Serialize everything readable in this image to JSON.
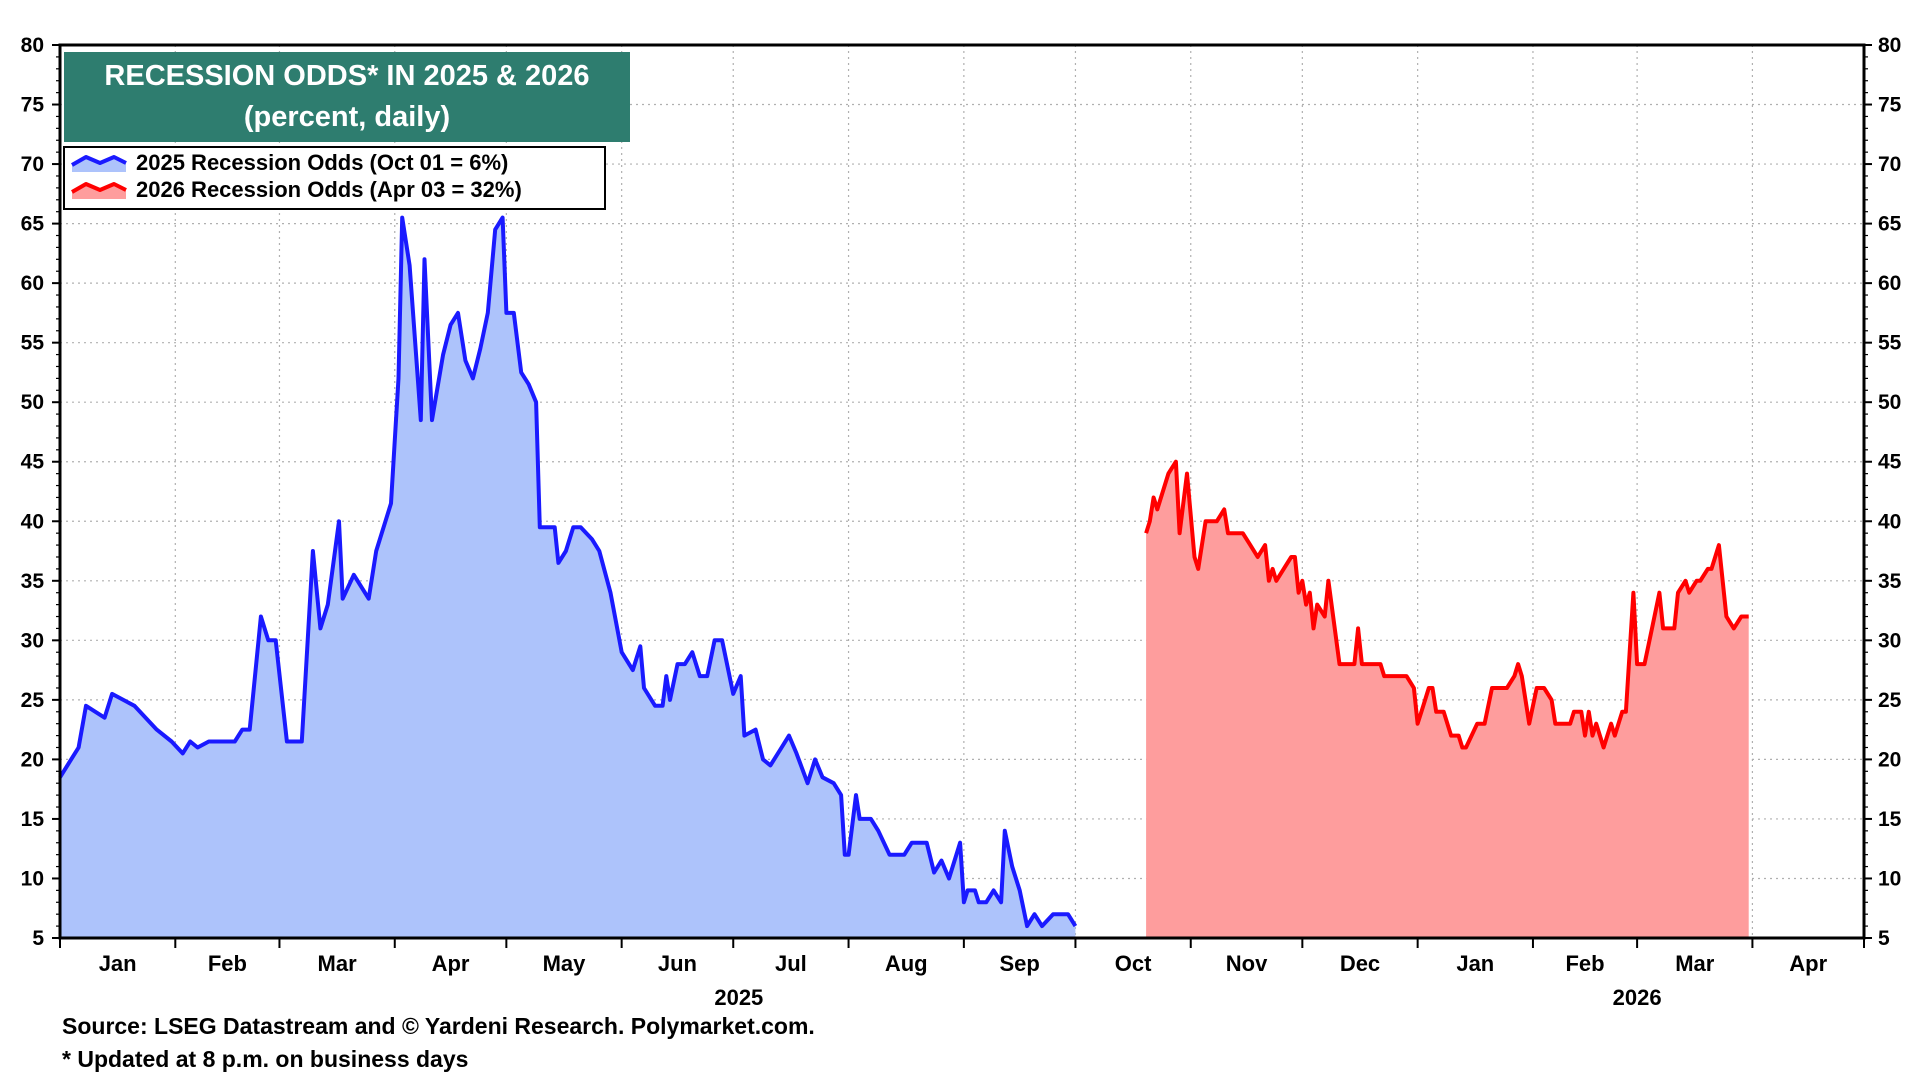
{
  "colors": {
    "series_2025_line": "#1a1aff",
    "series_2025_fill": "#adc3fb",
    "series_2026_line": "#ff0000",
    "series_2026_fill": "#fe9d9d",
    "title_box": "#2e7d6f",
    "grid": "#b0b0b0"
  },
  "footer": {
    "source": "Source: LSEG Datastream and © Yardeni Research. Polymarket.com.",
    "note": "* Updated at 8 p.m. on business days"
  },
  "chart_data": {
    "type": "area",
    "title": "RECESSION ODDS* IN 2025 & 2026",
    "subtitle": "(percent, daily)",
    "ylim": [
      5,
      80
    ],
    "y_ticks": [
      5,
      10,
      15,
      20,
      25,
      30,
      35,
      40,
      45,
      50,
      55,
      60,
      65,
      70,
      75,
      80
    ],
    "grid": true,
    "legend_position": "top-left",
    "x_range": [
      "2025-01-01",
      "2026-04-30"
    ],
    "x_month_labels": [
      "Jan",
      "Feb",
      "Mar",
      "Apr",
      "May",
      "Jun",
      "Jul",
      "Aug",
      "Sep",
      "Oct",
      "Nov",
      "Dec",
      "Jan",
      "Feb",
      "Mar",
      "Apr"
    ],
    "year_labels": [
      "2025",
      "2026"
    ],
    "series": [
      {
        "name": "2025 Recession Odds (Oct 01 = 6%)",
        "points": [
          [
            "2025-01-01",
            18.5
          ],
          [
            "2025-01-03",
            19.5
          ],
          [
            "2025-01-06",
            21
          ],
          [
            "2025-01-08",
            24.5
          ],
          [
            "2025-01-13",
            23.5
          ],
          [
            "2025-01-15",
            25.5
          ],
          [
            "2025-01-21",
            24.5
          ],
          [
            "2025-01-27",
            22.5
          ],
          [
            "2025-01-31",
            21.5
          ],
          [
            "2025-02-03",
            20.5
          ],
          [
            "2025-02-05",
            21.5
          ],
          [
            "2025-02-07",
            21
          ],
          [
            "2025-02-10",
            21.5
          ],
          [
            "2025-02-17",
            21.5
          ],
          [
            "2025-02-19",
            22.5
          ],
          [
            "2025-02-21",
            22.5
          ],
          [
            "2025-02-24",
            32
          ],
          [
            "2025-02-26",
            30
          ],
          [
            "2025-02-28",
            30
          ],
          [
            "2025-03-03",
            21.5
          ],
          [
            "2025-03-07",
            21.5
          ],
          [
            "2025-03-10",
            37.5
          ],
          [
            "2025-03-12",
            31
          ],
          [
            "2025-03-14",
            33
          ],
          [
            "2025-03-17",
            40
          ],
          [
            "2025-03-18",
            33.5
          ],
          [
            "2025-03-21",
            35.5
          ],
          [
            "2025-03-25",
            33.5
          ],
          [
            "2025-03-27",
            37.5
          ],
          [
            "2025-03-31",
            41.5
          ],
          [
            "2025-04-02",
            52
          ],
          [
            "2025-04-03",
            65.5
          ],
          [
            "2025-04-05",
            61.5
          ],
          [
            "2025-04-08",
            48.5
          ],
          [
            "2025-04-09",
            62
          ],
          [
            "2025-04-11",
            48.5
          ],
          [
            "2025-04-14",
            54
          ],
          [
            "2025-04-16",
            56.5
          ],
          [
            "2025-04-18",
            57.5
          ],
          [
            "2025-04-20",
            53.5
          ],
          [
            "2025-04-22",
            52
          ],
          [
            "2025-04-24",
            54.5
          ],
          [
            "2025-04-26",
            57.5
          ],
          [
            "2025-04-28",
            64.5
          ],
          [
            "2025-04-30",
            65.5
          ],
          [
            "2025-05-01",
            57.5
          ],
          [
            "2025-05-03",
            57.5
          ],
          [
            "2025-05-05",
            52.5
          ],
          [
            "2025-05-07",
            51.5
          ],
          [
            "2025-05-09",
            50
          ],
          [
            "2025-05-10",
            39.5
          ],
          [
            "2025-05-14",
            39.5
          ],
          [
            "2025-05-15",
            36.5
          ],
          [
            "2025-05-17",
            37.5
          ],
          [
            "2025-05-19",
            39.5
          ],
          [
            "2025-05-21",
            39.5
          ],
          [
            "2025-05-24",
            38.5
          ],
          [
            "2025-05-26",
            37.5
          ],
          [
            "2025-05-29",
            34
          ],
          [
            "2025-06-01",
            29
          ],
          [
            "2025-06-04",
            27.5
          ],
          [
            "2025-06-06",
            29.5
          ],
          [
            "2025-06-07",
            26
          ],
          [
            "2025-06-10",
            24.5
          ],
          [
            "2025-06-12",
            24.5
          ],
          [
            "2025-06-13",
            27
          ],
          [
            "2025-06-14",
            25
          ],
          [
            "2025-06-16",
            28
          ],
          [
            "2025-06-18",
            28
          ],
          [
            "2025-06-20",
            29
          ],
          [
            "2025-06-22",
            27
          ],
          [
            "2025-06-24",
            27
          ],
          [
            "2025-06-26",
            30
          ],
          [
            "2025-06-28",
            30
          ],
          [
            "2025-07-01",
            25.5
          ],
          [
            "2025-07-03",
            27
          ],
          [
            "2025-07-04",
            22
          ],
          [
            "2025-07-07",
            22.5
          ],
          [
            "2025-07-09",
            20
          ],
          [
            "2025-07-11",
            19.5
          ],
          [
            "2025-07-14",
            21
          ],
          [
            "2025-07-16",
            22
          ],
          [
            "2025-07-18",
            20.5
          ],
          [
            "2025-07-21",
            18
          ],
          [
            "2025-07-23",
            20
          ],
          [
            "2025-07-25",
            18.5
          ],
          [
            "2025-07-28",
            18
          ],
          [
            "2025-07-30",
            17
          ],
          [
            "2025-07-31",
            12
          ],
          [
            "2025-08-01",
            12
          ],
          [
            "2025-08-03",
            17
          ],
          [
            "2025-08-04",
            15
          ],
          [
            "2025-08-07",
            15
          ],
          [
            "2025-08-09",
            14
          ],
          [
            "2025-08-12",
            12
          ],
          [
            "2025-08-16",
            12
          ],
          [
            "2025-08-18",
            13
          ],
          [
            "2025-08-22",
            13
          ],
          [
            "2025-08-24",
            10.5
          ],
          [
            "2025-08-26",
            11.5
          ],
          [
            "2025-08-28",
            10
          ],
          [
            "2025-08-31",
            13
          ],
          [
            "2025-09-01",
            8
          ],
          [
            "2025-09-02",
            9
          ],
          [
            "2025-09-04",
            9
          ],
          [
            "2025-09-05",
            8
          ],
          [
            "2025-09-07",
            8
          ],
          [
            "2025-09-09",
            9
          ],
          [
            "2025-09-11",
            8
          ],
          [
            "2025-09-12",
            14
          ],
          [
            "2025-09-14",
            11
          ],
          [
            "2025-09-16",
            9
          ],
          [
            "2025-09-18",
            6
          ],
          [
            "2025-09-20",
            7
          ],
          [
            "2025-09-22",
            6
          ],
          [
            "2025-09-25",
            7
          ],
          [
            "2025-09-29",
            7
          ],
          [
            "2025-10-01",
            6
          ]
        ]
      },
      {
        "name": "2026 Recession Odds (Apr 03 = 32%)",
        "points": [
          [
            "2025-10-20",
            39
          ],
          [
            "2025-10-21",
            40
          ],
          [
            "2025-10-22",
            42
          ],
          [
            "2025-10-23",
            41
          ],
          [
            "2025-10-26",
            44
          ],
          [
            "2025-10-28",
            45
          ],
          [
            "2025-10-29",
            39
          ],
          [
            "2025-10-31",
            44
          ],
          [
            "2025-11-02",
            37
          ],
          [
            "2025-11-03",
            36
          ],
          [
            "2025-11-05",
            40
          ],
          [
            "2025-11-08",
            40
          ],
          [
            "2025-11-10",
            41
          ],
          [
            "2025-11-11",
            39
          ],
          [
            "2025-11-15",
            39
          ],
          [
            "2025-11-17",
            38
          ],
          [
            "2025-11-19",
            37
          ],
          [
            "2025-11-21",
            38
          ],
          [
            "2025-11-22",
            35
          ],
          [
            "2025-11-23",
            36
          ],
          [
            "2025-11-24",
            35
          ],
          [
            "2025-11-26",
            36
          ],
          [
            "2025-11-28",
            37
          ],
          [
            "2025-11-29",
            37
          ],
          [
            "2025-11-30",
            34
          ],
          [
            "2025-12-01",
            35
          ],
          [
            "2025-12-02",
            33
          ],
          [
            "2025-12-03",
            34
          ],
          [
            "2025-12-04",
            31
          ],
          [
            "2025-12-05",
            33
          ],
          [
            "2025-12-07",
            32
          ],
          [
            "2025-12-08",
            35
          ],
          [
            "2025-12-11",
            28
          ],
          [
            "2025-12-15",
            28
          ],
          [
            "2025-12-16",
            31
          ],
          [
            "2025-12-17",
            28
          ],
          [
            "2025-12-22",
            28
          ],
          [
            "2025-12-23",
            27
          ],
          [
            "2025-12-29",
            27
          ],
          [
            "2025-12-31",
            26
          ],
          [
            "2026-01-01",
            23
          ],
          [
            "2026-01-02",
            24
          ],
          [
            "2026-01-04",
            26
          ],
          [
            "2026-01-05",
            26
          ],
          [
            "2026-01-06",
            24
          ],
          [
            "2026-01-08",
            24
          ],
          [
            "2026-01-10",
            22
          ],
          [
            "2026-01-12",
            22
          ],
          [
            "2026-01-13",
            21
          ],
          [
            "2026-01-14",
            21
          ],
          [
            "2026-01-17",
            23
          ],
          [
            "2026-01-19",
            23
          ],
          [
            "2026-01-21",
            26
          ],
          [
            "2026-01-25",
            26
          ],
          [
            "2026-01-27",
            27
          ],
          [
            "2026-01-28",
            28
          ],
          [
            "2026-01-29",
            27
          ],
          [
            "2026-01-31",
            23
          ],
          [
            "2026-02-02",
            26
          ],
          [
            "2026-02-04",
            26
          ],
          [
            "2026-02-06",
            25
          ],
          [
            "2026-02-07",
            23
          ],
          [
            "2026-02-11",
            23
          ],
          [
            "2026-02-12",
            24
          ],
          [
            "2026-02-14",
            24
          ],
          [
            "2026-02-15",
            22
          ],
          [
            "2026-02-16",
            24
          ],
          [
            "2026-02-17",
            22
          ],
          [
            "2026-02-18",
            23
          ],
          [
            "2026-02-20",
            21
          ],
          [
            "2026-02-22",
            23
          ],
          [
            "2026-02-23",
            22
          ],
          [
            "2026-02-25",
            24
          ],
          [
            "2026-02-26",
            24
          ],
          [
            "2026-02-28",
            34
          ],
          [
            "2026-03-01",
            28
          ],
          [
            "2026-03-03",
            28
          ],
          [
            "2026-03-05",
            31
          ],
          [
            "2026-03-07",
            34
          ],
          [
            "2026-03-08",
            31
          ],
          [
            "2026-03-11",
            31
          ],
          [
            "2026-03-12",
            34
          ],
          [
            "2026-03-14",
            35
          ],
          [
            "2026-03-15",
            34
          ],
          [
            "2026-03-17",
            35
          ],
          [
            "2026-03-18",
            35
          ],
          [
            "2026-03-20",
            36
          ],
          [
            "2026-03-21",
            36
          ],
          [
            "2026-03-23",
            38
          ],
          [
            "2026-03-25",
            32
          ],
          [
            "2026-03-27",
            31
          ],
          [
            "2026-03-29",
            32
          ],
          [
            "2026-03-31",
            32
          ]
        ]
      }
    ]
  }
}
